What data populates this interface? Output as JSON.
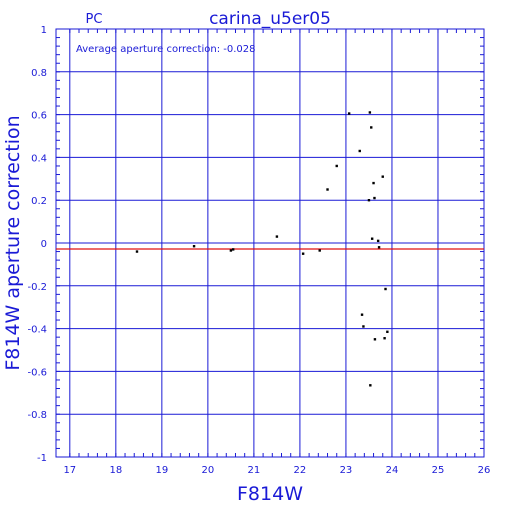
{
  "chart_data": {
    "type": "scatter",
    "title": "carina_u5er05",
    "subtitle": "PC",
    "annotation": "Average aperture correction: -0.028",
    "xlabel": "F814W",
    "ylabel": "F814W aperture correction",
    "xlim": [
      16.7,
      26
    ],
    "ylim": [
      -1,
      1
    ],
    "x_ticks": [
      "17",
      "18",
      "19",
      "20",
      "21",
      "22",
      "23",
      "24",
      "25",
      "26"
    ],
    "y_ticks": [
      "1",
      "0.8",
      "0.6",
      "0.4",
      "0.2",
      "0",
      "-0.2",
      "-0.4",
      "-0.6",
      "-0.8",
      "-1"
    ],
    "grid": true,
    "reference_line": {
      "y": -0.028,
      "color": "#e01010"
    },
    "colors": {
      "axes": "#1a1ad6",
      "points": "#000000"
    },
    "points": [
      {
        "x": 18.46,
        "y": -0.04
      },
      {
        "x": 19.7,
        "y": -0.015
      },
      {
        "x": 20.5,
        "y": -0.035
      },
      {
        "x": 20.55,
        "y": -0.03
      },
      {
        "x": 21.5,
        "y": 0.03
      },
      {
        "x": 22.07,
        "y": -0.05
      },
      {
        "x": 22.43,
        "y": -0.035
      },
      {
        "x": 22.6,
        "y": 0.25
      },
      {
        "x": 22.8,
        "y": 0.36
      },
      {
        "x": 23.07,
        "y": 0.605
      },
      {
        "x": 23.3,
        "y": 0.43
      },
      {
        "x": 23.35,
        "y": -0.335
      },
      {
        "x": 23.38,
        "y": -0.39
      },
      {
        "x": 23.5,
        "y": 0.2
      },
      {
        "x": 23.52,
        "y": 0.61
      },
      {
        "x": 23.53,
        "y": -0.665
      },
      {
        "x": 23.55,
        "y": 0.54
      },
      {
        "x": 23.57,
        "y": 0.02
      },
      {
        "x": 23.6,
        "y": 0.28
      },
      {
        "x": 23.62,
        "y": 0.21
      },
      {
        "x": 23.63,
        "y": -0.45
      },
      {
        "x": 23.7,
        "y": 0.01
      },
      {
        "x": 23.72,
        "y": -0.02
      },
      {
        "x": 23.8,
        "y": 0.31
      },
      {
        "x": 23.84,
        "y": -0.445
      },
      {
        "x": 23.86,
        "y": -0.215
      },
      {
        "x": 23.9,
        "y": -0.415
      }
    ]
  }
}
